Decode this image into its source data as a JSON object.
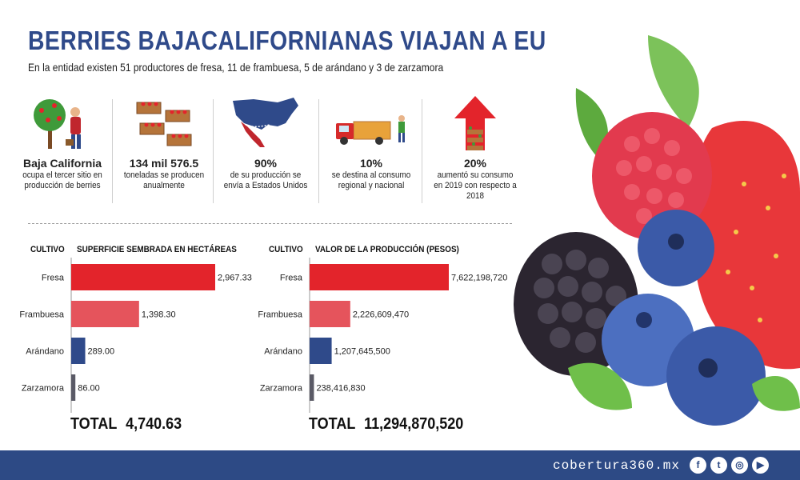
{
  "header": {
    "title": "BERRIES BAJACALIFORNIANAS VIAJAN A EU",
    "subtitle": "En la entidad existen 51 productores de fresa, 11 de frambuesa, 5 de arándano y 3 de zarzamora"
  },
  "stats": [
    {
      "big": "Baja California",
      "text": "ocupa el tercer sitio en producción de berries",
      "icon": "farmer-tree-icon"
    },
    {
      "big": "134 mil 576.5",
      "text": "toneladas se producen anualmente",
      "icon": "crates-icon"
    },
    {
      "big": "90%",
      "text": "de su producción se envía a Estados Unidos",
      "icon": "usa-map-icon"
    },
    {
      "big": "10%",
      "text": "se destina al consumo regional y nacional",
      "icon": "truck-icon"
    },
    {
      "big": "20%",
      "text": "aumentó su consumo en 2019 con respecto a 2018",
      "icon": "up-arrow-icon"
    }
  ],
  "chart_data": [
    {
      "type": "bar",
      "orientation": "horizontal",
      "category_header": "CULTIVO",
      "title": "SUPERFICIE SEMBRADA EN HECTÁREAS",
      "categories": [
        "Fresa",
        "Frambuesa",
        "Arándano",
        "Zarzamora"
      ],
      "values": [
        2967.33,
        1398.3,
        289.0,
        86.0
      ],
      "value_labels": [
        "2,967.33",
        "1,398.30",
        "289.00",
        "86.00"
      ],
      "colors": [
        "#e3242b",
        "#e5545c",
        "#2f4a8a",
        "#5a5a66"
      ],
      "total_label": "TOTAL",
      "total_value": "4,740.63"
    },
    {
      "type": "bar",
      "orientation": "horizontal",
      "category_header": "CULTIVO",
      "title": "VALOR DE LA PRODUCCIÓN (PESOS)",
      "categories": [
        "Fresa",
        "Frambuesa",
        "Arándano",
        "Zarzamora"
      ],
      "values": [
        7622198720,
        2226609470,
        1207645500,
        238416830
      ],
      "value_labels": [
        "7,622,198,720",
        "2,226,609,470",
        "1,207,645,500",
        "238,416,830"
      ],
      "colors": [
        "#e3242b",
        "#e5545c",
        "#2f4a8a",
        "#5a5a66"
      ],
      "total_label": "TOTAL",
      "total_value": "11,294,870,520"
    }
  ],
  "footer": {
    "site": "cobertura360.mx",
    "social": [
      {
        "icon": "facebook-icon",
        "glyph": "f"
      },
      {
        "icon": "twitter-icon",
        "glyph": "t"
      },
      {
        "icon": "instagram-icon",
        "glyph": "◎"
      },
      {
        "icon": "youtube-icon",
        "glyph": "▶"
      }
    ]
  }
}
